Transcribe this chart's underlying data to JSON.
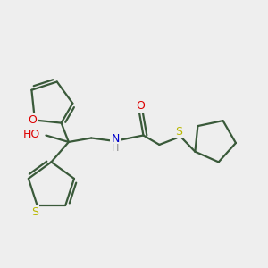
{
  "bg_color": "#eeeeee",
  "bond_color": "#3a5a3a",
  "S_color": "#b8b800",
  "O_color": "#dd0000",
  "N_color": "#0000cc",
  "line_width": 1.6,
  "dbo": 0.012,
  "figsize": [
    3.0,
    3.0
  ],
  "dpi": 100,
  "xlim": [
    0.0,
    1.0
  ],
  "ylim": [
    0.1,
    0.95
  ]
}
